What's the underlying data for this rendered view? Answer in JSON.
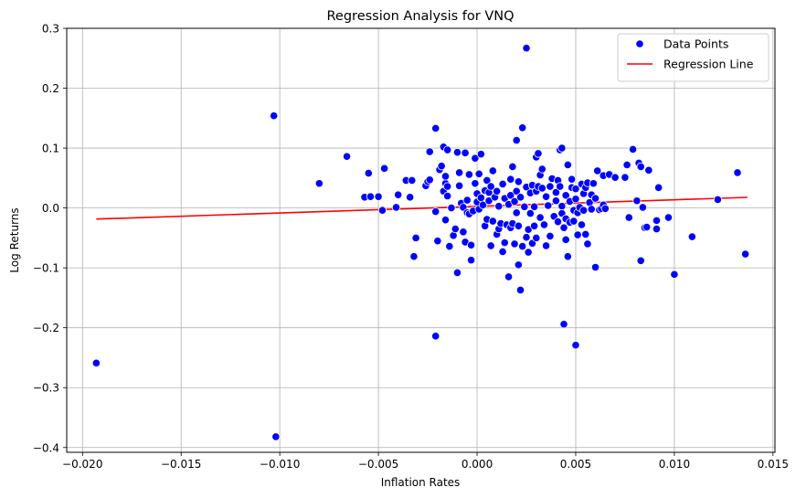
{
  "chart_data": {
    "type": "scatter",
    "title": "Regression Analysis for VNQ",
    "xlabel": "Inflation Rates",
    "ylabel": "Log Returns",
    "xlim": [
      -0.0208,
      0.0151
    ],
    "ylim": [
      -0.408,
      0.3
    ],
    "xticks": [
      -0.02,
      -0.015,
      -0.01,
      -0.005,
      0.0,
      0.005,
      0.01,
      0.015
    ],
    "xtick_labels": [
      "−0.020",
      "−0.015",
      "−0.010",
      "−0.005",
      "0.000",
      "0.005",
      "0.010",
      "0.015"
    ],
    "yticks": [
      -0.4,
      -0.3,
      -0.2,
      -0.1,
      0.0,
      0.1,
      0.2,
      0.3
    ],
    "ytick_labels": [
      "−0.4",
      "−0.3",
      "−0.2",
      "−0.1",
      "0.0",
      "0.1",
      "0.2",
      "0.3"
    ],
    "grid": true,
    "legend": {
      "position": "top-right",
      "entries": [
        {
          "label": "Data Points",
          "kind": "marker",
          "color": "#0000ff"
        },
        {
          "label": "Regression Line",
          "kind": "line",
          "color": "#ff0000"
        }
      ]
    },
    "colors": {
      "points": "#0000ff",
      "point_edge": "#ffffff",
      "line": "#ff0000",
      "grid": "#b0b0b0"
    },
    "regression_line": {
      "x": [
        -0.0193,
        0.0137
      ],
      "y": [
        -0.0185,
        0.0177
      ]
    },
    "series": [
      {
        "name": "Data Points",
        "points": [
          [
            -0.0193,
            -0.259
          ],
          [
            -0.0103,
            0.154
          ],
          [
            -0.0102,
            -0.382
          ],
          [
            -0.008,
            0.041
          ],
          [
            -0.0066,
            0.086
          ],
          [
            -0.0057,
            0.018
          ],
          [
            -0.0055,
            0.058
          ],
          [
            -0.0054,
            0.019
          ],
          [
            -0.005,
            0.019
          ],
          [
            -0.0048,
            -0.004
          ],
          [
            -0.0047,
            0.066
          ],
          [
            -0.0041,
            0.001
          ],
          [
            -0.004,
            0.022
          ],
          [
            -0.0036,
            0.046
          ],
          [
            -0.0034,
            0.018
          ],
          [
            -0.0033,
            0.046
          ],
          [
            -0.0032,
            -0.081
          ],
          [
            -0.0031,
            -0.05
          ],
          [
            -0.0026,
            0.037
          ],
          [
            -0.0025,
            0.044
          ],
          [
            -0.0024,
            0.047
          ],
          [
            -0.0024,
            0.094
          ],
          [
            -0.0021,
            -0.214
          ],
          [
            -0.0021,
            -0.006
          ],
          [
            -0.0021,
            0.133
          ],
          [
            -0.002,
            -0.055
          ],
          [
            -0.0019,
            0.064
          ],
          [
            -0.0018,
            0.07
          ],
          [
            -0.0017,
            0.102
          ],
          [
            -0.0017,
            0.028
          ],
          [
            -0.0016,
            0.041
          ],
          [
            -0.0016,
            0.053
          ],
          [
            -0.0016,
            -0.02
          ],
          [
            -0.0015,
            0.097
          ],
          [
            -0.0015,
            0.036
          ],
          [
            -0.0015,
            0.02
          ],
          [
            -0.0014,
            -0.064
          ],
          [
            -0.0013,
            0.0
          ],
          [
            -0.0012,
            -0.046
          ],
          [
            -0.0011,
            -0.035
          ],
          [
            -0.001,
            0.093
          ],
          [
            -0.001,
            -0.108
          ],
          [
            -0.0009,
            0.059
          ],
          [
            -0.0009,
            0.037
          ],
          [
            -0.0008,
            0.008
          ],
          [
            -0.0007,
            -0.04
          ],
          [
            -0.0007,
            0.001
          ],
          [
            -0.0006,
            0.092
          ],
          [
            -0.0006,
            -0.057
          ],
          [
            -0.0005,
            0.013
          ],
          [
            -0.0005,
            -0.008
          ],
          [
            -0.0004,
            0.056
          ],
          [
            -0.0004,
            -0.01
          ],
          [
            -0.0003,
            -0.062
          ],
          [
            -0.0003,
            -0.087
          ],
          [
            -0.0002,
            -0.005
          ],
          [
            -0.0001,
            0.041
          ],
          [
            -0.0001,
            0.083
          ],
          [
            0.0,
            0.01
          ],
          [
            0.0,
            0.024
          ],
          [
            0.0001,
            -0.002
          ],
          [
            0.0001,
            0.057
          ],
          [
            0.0002,
            0.09
          ],
          [
            0.0002,
            0.017
          ],
          [
            0.0003,
            0.005
          ],
          [
            0.0004,
            -0.03
          ],
          [
            0.0004,
            0.029
          ],
          [
            0.0005,
            -0.019
          ],
          [
            0.0005,
            0.046
          ],
          [
            0.0006,
            0.026
          ],
          [
            0.0006,
            0.012
          ],
          [
            0.0007,
            0.036
          ],
          [
            0.0007,
            -0.063
          ],
          [
            0.0008,
            -0.022
          ],
          [
            0.0008,
            0.062
          ],
          [
            0.0009,
            0.018
          ],
          [
            0.001,
            -0.044
          ],
          [
            0.001,
            0.028
          ],
          [
            0.0011,
            -0.035
          ],
          [
            0.0011,
            0.003
          ],
          [
            0.0012,
            -0.026
          ],
          [
            0.0013,
            0.04
          ],
          [
            0.0013,
            -0.073
          ],
          [
            0.0014,
            -0.058
          ],
          [
            0.0014,
            0.016
          ],
          [
            0.0015,
            -0.028
          ],
          [
            0.0016,
            -0.115
          ],
          [
            0.0016,
            0.006
          ],
          [
            0.0017,
            -0.033
          ],
          [
            0.0017,
            0.048
          ],
          [
            0.0017,
            0.021
          ],
          [
            0.0018,
            0.069
          ],
          [
            0.0018,
            -0.026
          ],
          [
            0.0019,
            0.011
          ],
          [
            0.0019,
            -0.06
          ],
          [
            0.002,
            0.113
          ],
          [
            0.002,
            0.028
          ],
          [
            0.002,
            -0.008
          ],
          [
            0.0021,
            -0.095
          ],
          [
            0.0021,
            0.044
          ],
          [
            0.0021,
            -0.03
          ],
          [
            0.0022,
            -0.137
          ],
          [
            0.0022,
            0.018
          ],
          [
            0.0023,
            -0.064
          ],
          [
            0.0023,
            0.134
          ],
          [
            0.0024,
            0.002
          ],
          [
            0.0025,
            0.267
          ],
          [
            0.0025,
            -0.049
          ],
          [
            0.0025,
            0.035
          ],
          [
            0.0026,
            -0.036
          ],
          [
            0.0026,
            -0.074
          ],
          [
            0.0027,
            0.025
          ],
          [
            0.0027,
            -0.009
          ],
          [
            0.0028,
            0.038
          ],
          [
            0.0028,
            -0.059
          ],
          [
            0.0029,
            -0.03
          ],
          [
            0.0029,
            0.002
          ],
          [
            0.003,
            0.085
          ],
          [
            0.003,
            0.028
          ],
          [
            0.003,
            -0.05
          ],
          [
            0.0031,
            0.036
          ],
          [
            0.0031,
            0.091
          ],
          [
            0.0032,
            -0.016
          ],
          [
            0.0032,
            0.055
          ],
          [
            0.0033,
            0.065
          ],
          [
            0.0033,
            0.033
          ],
          [
            0.0034,
            -0.028
          ],
          [
            0.0035,
            -0.063
          ],
          [
            0.0035,
            0.019
          ],
          [
            0.0036,
            0.004
          ],
          [
            0.0037,
            0.036
          ],
          [
            0.0037,
            -0.047
          ],
          [
            0.0038,
            0.049
          ],
          [
            0.0039,
            -0.014
          ],
          [
            0.004,
            0.026
          ],
          [
            0.004,
            0.012
          ],
          [
            0.0041,
            0.046
          ],
          [
            0.0041,
            -0.023
          ],
          [
            0.0042,
            0.097
          ],
          [
            0.0042,
            0.036
          ],
          [
            0.0043,
            0.003
          ],
          [
            0.0043,
            -0.009
          ],
          [
            0.0043,
            0.1
          ],
          [
            0.0044,
            -0.194
          ],
          [
            0.0044,
            -0.033
          ],
          [
            0.0045,
            0.021
          ],
          [
            0.0045,
            -0.053
          ],
          [
            0.0045,
            -0.018
          ],
          [
            0.0046,
            -0.081
          ],
          [
            0.0046,
            0.072
          ],
          [
            0.0047,
            0.011
          ],
          [
            0.0047,
            -0.024
          ],
          [
            0.0048,
            0.034
          ],
          [
            0.0048,
            0.048
          ],
          [
            0.0049,
            -0.004
          ],
          [
            0.0049,
            -0.022
          ],
          [
            0.005,
            -0.229
          ],
          [
            0.005,
            0.032
          ],
          [
            0.005,
            0.015
          ],
          [
            0.0051,
            -0.045
          ],
          [
            0.0051,
            -0.008
          ],
          [
            0.0052,
            0.001
          ],
          [
            0.0053,
            0.04
          ],
          [
            0.0053,
            -0.028
          ],
          [
            0.0054,
            0.024
          ],
          [
            0.0054,
            -0.004
          ],
          [
            0.0055,
            0.034
          ],
          [
            0.0055,
            -0.044
          ],
          [
            0.0056,
            0.042
          ],
          [
            0.0056,
            -0.06
          ],
          [
            0.0057,
            0.009
          ],
          [
            0.0058,
            -0.002
          ],
          [
            0.0058,
            0.022
          ],
          [
            0.0059,
            0.041
          ],
          [
            0.006,
            -0.099
          ],
          [
            0.006,
            0.016
          ],
          [
            0.0061,
            0.062
          ],
          [
            0.0062,
            -0.003
          ],
          [
            0.0063,
            -0.001
          ],
          [
            0.0064,
            0.054
          ],
          [
            0.0064,
            0.005
          ],
          [
            0.0065,
            -0.001
          ],
          [
            0.0067,
            0.056
          ],
          [
            0.007,
            0.051
          ],
          [
            0.0075,
            0.051
          ],
          [
            0.0076,
            0.072
          ],
          [
            0.0077,
            -0.016
          ],
          [
            0.0079,
            0.098
          ],
          [
            0.0081,
            0.012
          ],
          [
            0.0082,
            0.075
          ],
          [
            0.0083,
            0.069
          ],
          [
            0.0083,
            -0.088
          ],
          [
            0.0084,
            0.001
          ],
          [
            0.0085,
            -0.033
          ],
          [
            0.0086,
            -0.032
          ],
          [
            0.0087,
            0.063
          ],
          [
            0.0091,
            -0.021
          ],
          [
            0.0091,
            -0.035
          ],
          [
            0.0092,
            0.034
          ],
          [
            0.0097,
            -0.016
          ],
          [
            0.01,
            -0.111
          ],
          [
            0.0109,
            -0.048
          ],
          [
            0.0122,
            0.014
          ],
          [
            0.0132,
            0.059
          ],
          [
            0.0136,
            -0.077
          ]
        ]
      }
    ]
  }
}
